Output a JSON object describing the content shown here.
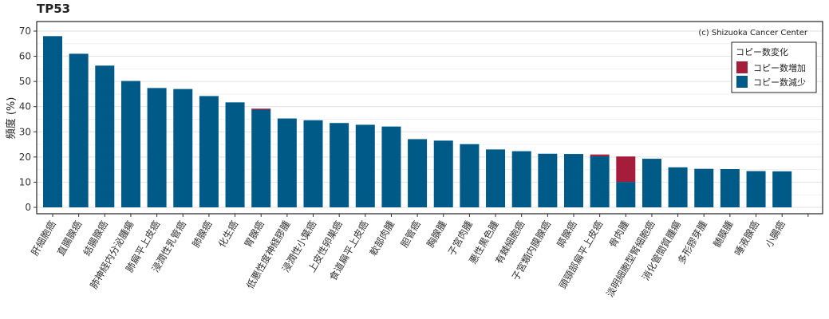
{
  "page": {
    "title": "TP53"
  },
  "chart_data": {
    "type": "bar",
    "stacked": true,
    "title": "TP53",
    "ylabel": "頻度 (%)",
    "xlabel": "",
    "ylim": [
      0,
      72
    ],
    "yticks": [
      0,
      10,
      20,
      30,
      40,
      50,
      60,
      70
    ],
    "grid": true,
    "credit": "(c) Shizuoka Cancer Center",
    "legend": {
      "title": "コピー数変化",
      "placement": "top-right",
      "entries": [
        "コピー数増加",
        "コピー数減少"
      ]
    },
    "colors": {
      "コピー数増加": "#a61d3c",
      "コピー数減少": "#005a87"
    },
    "categories": [
      "肝細胞癌",
      "直腸腺癌",
      "結腸腺癌",
      "肺神経内分泌腫瘍",
      "肺扁平上皮癌",
      "浸潤性乳管癌",
      "肺腺癌",
      "化生癌",
      "胃腺癌",
      "低悪性度神経膠腫",
      "浸潤性小葉癌",
      "上皮性卵巣癌",
      "食道扁平上皮癌",
      "軟部肉腫",
      "胆管癌",
      "胸腺腫",
      "子宮肉腫",
      "悪性黒色腫",
      "有棘細胞癌",
      "子宮類内膜腺癌",
      "膵腺癌",
      "頭頸部扁平上皮癌",
      "骨肉腫",
      "淡明細胞型腎細胞癌",
      "消化管間質腫瘍",
      "多形膠芽腫",
      "髄膜腫",
      "唾液腺癌",
      "小腸癌"
    ],
    "series": [
      {
        "name": "コピー数減少",
        "values": [
          68,
          61,
          56.3,
          50.2,
          47.4,
          47,
          44.2,
          41.7,
          38.8,
          35.3,
          34.6,
          33.5,
          32.8,
          32.1,
          27.1,
          26.5,
          25.1,
          23,
          22.3,
          21.3,
          21.2,
          20.3,
          10.1,
          19.3,
          15.9,
          15.3,
          15.2,
          14.4,
          14.3
        ]
      },
      {
        "name": "コピー数増加",
        "values": [
          0,
          0,
          0,
          0,
          0,
          0,
          0,
          0,
          0.4,
          0,
          0,
          0,
          0,
          0,
          0,
          0,
          0,
          0,
          0,
          0,
          0,
          0.7,
          10.1,
          0,
          0,
          0,
          0,
          0,
          0
        ]
      }
    ]
  }
}
